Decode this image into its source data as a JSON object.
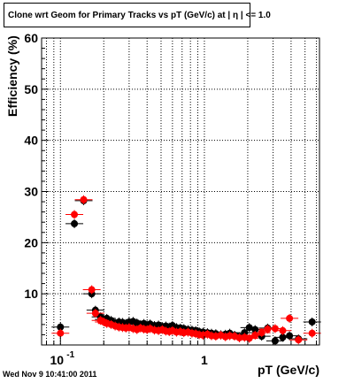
{
  "footer_text": "Wed Nov  9 10:41:00 2011",
  "chart_data": {
    "type": "scatter",
    "title": "Clone wrt Geom for Primary Tracks vs pT (GeV/c) at | η | <= 1.0",
    "xlabel": "pT (GeV/c)",
    "ylabel": "Efficiency (%)",
    "x_scale": "log",
    "xlim": [
      0.074,
      6.3
    ],
    "ylim": [
      0,
      60
    ],
    "y_ticks": [
      10,
      20,
      30,
      40,
      50,
      60
    ],
    "x_tick_labels": [
      {
        "value": 0.1,
        "base": "10",
        "exp": "-1"
      },
      {
        "value": 1,
        "base": "1",
        "exp": ""
      }
    ],
    "grid": true,
    "colors": {
      "series_black": "#000000",
      "series_red": "#ff0000",
      "axis": "#000000",
      "grid": "#000000"
    },
    "series": [
      {
        "color": "black",
        "points": [
          [
            0.1,
            3.5
          ],
          [
            0.125,
            23.7
          ],
          [
            0.145,
            28.2
          ],
          [
            0.165,
            10.0
          ],
          [
            0.175,
            6.8
          ],
          [
            0.19,
            5.5
          ],
          [
            0.2,
            5.0
          ],
          [
            0.21,
            5.2
          ],
          [
            0.225,
            4.8
          ],
          [
            0.24,
            4.3
          ],
          [
            0.255,
            4.5
          ],
          [
            0.27,
            4.4
          ],
          [
            0.285,
            4.2
          ],
          [
            0.3,
            4.5
          ],
          [
            0.32,
            4.6
          ],
          [
            0.34,
            4.3
          ],
          [
            0.36,
            4.0
          ],
          [
            0.38,
            4.2
          ],
          [
            0.4,
            3.9
          ],
          [
            0.42,
            4.1
          ],
          [
            0.45,
            3.8
          ],
          [
            0.48,
            3.9
          ],
          [
            0.51,
            3.6
          ],
          [
            0.54,
            3.7
          ],
          [
            0.57,
            3.5
          ],
          [
            0.6,
            3.8
          ],
          [
            0.64,
            3.4
          ],
          [
            0.68,
            3.3
          ],
          [
            0.72,
            3.2
          ],
          [
            0.77,
            3.0
          ],
          [
            0.82,
            2.9
          ],
          [
            0.87,
            2.8
          ],
          [
            0.92,
            2.6
          ],
          [
            0.98,
            2.5
          ],
          [
            1.05,
            2.4
          ],
          [
            1.12,
            2.3
          ],
          [
            1.2,
            2.2
          ],
          [
            1.3,
            2.0
          ],
          [
            1.4,
            2.1
          ],
          [
            1.5,
            2.3
          ],
          [
            1.62,
            1.9
          ],
          [
            1.75,
            1.6
          ],
          [
            1.9,
            2.4
          ],
          [
            2.05,
            3.4
          ],
          [
            2.25,
            3.0
          ],
          [
            2.5,
            1.7
          ],
          [
            2.75,
            3.3
          ],
          [
            3.1,
            0.8
          ],
          [
            3.5,
            1.5
          ],
          [
            3.9,
            1.8
          ],
          [
            4.5,
            1.2
          ],
          [
            5.6,
            4.5
          ]
        ]
      },
      {
        "color": "red",
        "points": [
          [
            0.1,
            2.3
          ],
          [
            0.125,
            25.5
          ],
          [
            0.145,
            28.4
          ],
          [
            0.165,
            10.8
          ],
          [
            0.175,
            6.2
          ],
          [
            0.19,
            4.8
          ],
          [
            0.2,
            4.5
          ],
          [
            0.21,
            4.2
          ],
          [
            0.225,
            4.0
          ],
          [
            0.24,
            3.7
          ],
          [
            0.255,
            3.5
          ],
          [
            0.27,
            3.4
          ],
          [
            0.285,
            3.3
          ],
          [
            0.3,
            3.4
          ],
          [
            0.32,
            3.2
          ],
          [
            0.34,
            3.0
          ],
          [
            0.36,
            3.3
          ],
          [
            0.38,
            3.1
          ],
          [
            0.4,
            3.0
          ],
          [
            0.42,
            3.2
          ],
          [
            0.45,
            2.9
          ],
          [
            0.48,
            2.8
          ],
          [
            0.51,
            3.0
          ],
          [
            0.54,
            2.7
          ],
          [
            0.57,
            2.6
          ],
          [
            0.6,
            2.8
          ],
          [
            0.64,
            2.5
          ],
          [
            0.68,
            2.6
          ],
          [
            0.72,
            2.4
          ],
          [
            0.77,
            2.5
          ],
          [
            0.82,
            2.3
          ],
          [
            0.87,
            2.2
          ],
          [
            0.92,
            2.0
          ],
          [
            0.98,
            1.9
          ],
          [
            1.05,
            2.1
          ],
          [
            1.12,
            1.8
          ],
          [
            1.2,
            1.7
          ],
          [
            1.3,
            1.9
          ],
          [
            1.4,
            1.6
          ],
          [
            1.5,
            1.8
          ],
          [
            1.62,
            1.7
          ],
          [
            1.75,
            1.4
          ],
          [
            1.9,
            1.5
          ],
          [
            2.05,
            1.3
          ],
          [
            2.25,
            1.9
          ],
          [
            2.5,
            2.4
          ],
          [
            2.75,
            3.1
          ],
          [
            3.1,
            3.2
          ],
          [
            3.5,
            2.8
          ],
          [
            3.9,
            5.2
          ],
          [
            4.5,
            1.0
          ],
          [
            5.6,
            2.3
          ]
        ]
      }
    ]
  }
}
